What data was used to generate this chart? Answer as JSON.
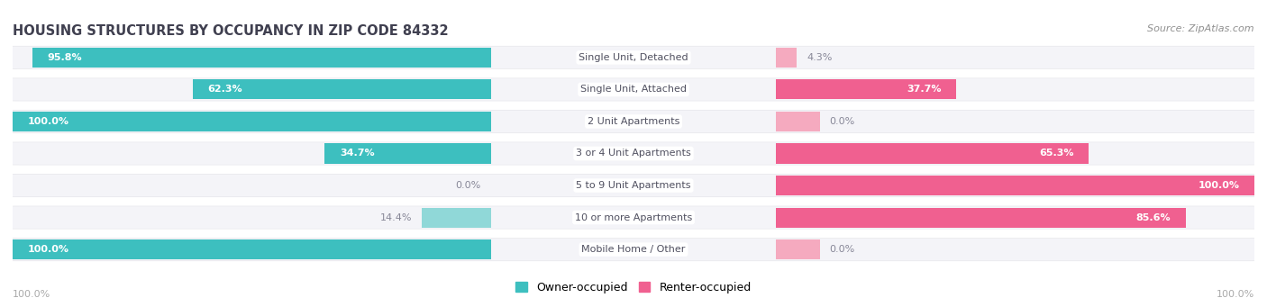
{
  "title": "HOUSING STRUCTURES BY OCCUPANCY IN ZIP CODE 84332",
  "source": "Source: ZipAtlas.com",
  "categories": [
    "Single Unit, Detached",
    "Single Unit, Attached",
    "2 Unit Apartments",
    "3 or 4 Unit Apartments",
    "5 to 9 Unit Apartments",
    "10 or more Apartments",
    "Mobile Home / Other"
  ],
  "owner_pct": [
    95.8,
    62.3,
    100.0,
    34.7,
    0.0,
    14.4,
    100.0
  ],
  "renter_pct": [
    4.3,
    37.7,
    0.0,
    65.3,
    100.0,
    85.6,
    0.0
  ],
  "owner_color": "#3DBFBF",
  "renter_color": "#F06090",
  "owner_color_light": "#90D8D8",
  "renter_color_light": "#F5AABF",
  "row_bg_color": "#E8E8EC",
  "row_inner_color": "#F4F4F8",
  "label_color": "#505060",
  "value_color_white": "#FFFFFF",
  "value_color_dark": "#888898",
  "title_color": "#404050",
  "source_color": "#909090",
  "axis_label_color": "#AAAAAA",
  "bar_height": 0.62,
  "figsize": [
    14.06,
    3.41
  ],
  "dpi": 100
}
